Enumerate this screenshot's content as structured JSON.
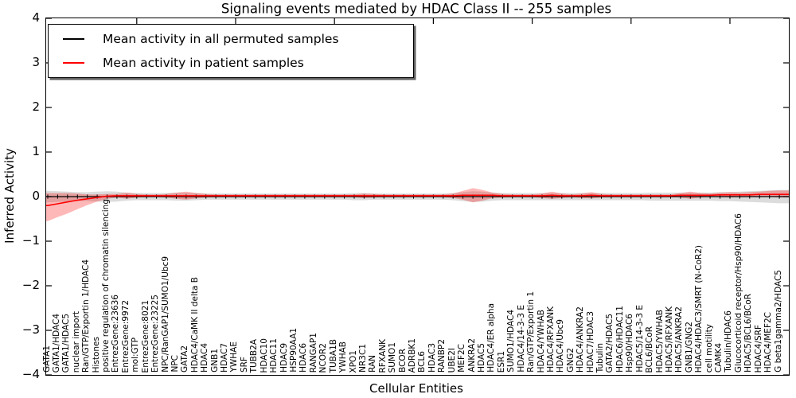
{
  "title": "Signaling events mediated by HDAC Class II -- 255 samples",
  "axes": {
    "x_label": "Cellular Entities",
    "y_label": "Inferred Activity"
  },
  "legend": {
    "items": [
      {
        "label": "Mean activity in all permuted samples",
        "color": "#000000"
      },
      {
        "label": "Mean activity in patient samples",
        "color": "#ff0000"
      }
    ],
    "position": "upper left"
  },
  "chart_data": {
    "type": "line",
    "title": "Signaling events mediated by HDAC Class II -- 255 samples",
    "xlabel": "Cellular Entities",
    "ylabel": "Inferred Activity",
    "ylim": [
      -4,
      4
    ],
    "yticks": [
      4,
      3,
      2,
      1,
      0,
      -1,
      -2,
      -3,
      -4
    ],
    "grid": false,
    "zero_line": "dotted",
    "categories": [
      "GATA1",
      "GATA1/HDAC4",
      "GATA1/HDAC5",
      "nuclear import",
      "Ran/GTP/Exportin 1/HDAC4",
      "Histones",
      "positive regulation of chromatin silencing",
      "EntrezGene:23636",
      "EntrezGene:9972",
      "mol:GTP",
      "EntrezGene:8021",
      "EntrezGene:23225",
      "NPC/RanGAP1/SUMO1/Ubc9",
      "NPC",
      "GATA2",
      "HDAC4/CaMK II delta B",
      "HDAC4",
      "GNB1",
      "HDAC7",
      "YWHAE",
      "SRF",
      "TUBB2A",
      "HDAC10",
      "HDAC11",
      "HDAC9",
      "HSP90AA1",
      "HDAC6",
      "RANGAP1",
      "NCOR2",
      "TUBA1B",
      "YWHAB",
      "XPO1",
      "NR3C1",
      "RAN",
      "RFXANK",
      "SUMO1",
      "BCOR",
      "ADRBK1",
      "BCL6",
      "HDAC3",
      "RANBP2",
      "UBE2I",
      "MEF2C",
      "ANKRA2",
      "HDAC5",
      "HDAC4/ER alpha",
      "ESR1",
      "SUMO1/HDAC4",
      "HDAC4/14-3-3 E",
      "Ran/GTP/Exportin 1",
      "HDAC4/YWHAB",
      "HDAC4/RFXANK",
      "HDAC4/Ubc9",
      "GNG2",
      "HDAC4/ANKRA2",
      "HDAC7/HDAC3",
      "Tubulin",
      "GATA2/HDAC5",
      "HDAC6/HDAC11",
      "Hsp90/HDAC6",
      "HDAC5/14-3-3 E",
      "BCL6/BCoR",
      "HDAC5/YWHAB",
      "HDAC5/RFXANK",
      "HDAC5/ANKRA2",
      "GNB1/GNG2",
      "HDAC4/HDAC3/SMRT (N-CoR2)",
      "cell motility",
      "CAMK4",
      "Tubulin/HDAC6",
      "Glucocorticoid receptor/Hsp90/HDAC6",
      "HDAC5/BCL6/BCoR",
      "HDAC4/SRF",
      "HDAC4/MEF2C",
      "G beta1gamma2/HDAC5"
    ],
    "series": [
      {
        "name": "Mean activity in all permuted samples",
        "color": "#000000",
        "values": 0
      },
      {
        "name": "Mean activity in patient samples",
        "color": "#ff0000",
        "values": [
          -0.2,
          -0.16,
          -0.12,
          -0.08,
          -0.05,
          -0.02,
          0.01,
          0.02,
          0.02,
          0.02,
          0.02,
          0.02,
          0.02,
          0.02,
          0.02,
          0.02,
          0.02,
          0.02,
          0.02,
          0.02,
          0.02,
          0.02,
          0.02,
          0.02,
          0.02,
          0.02,
          0.02,
          0.02,
          0.02,
          0.02,
          0.02,
          0.02,
          0.02,
          0.02,
          0.02,
          0.02,
          0.02,
          0.02,
          0.02,
          0.02,
          0.02,
          0.02,
          0.03,
          0.03,
          0.03,
          0.03,
          0.02,
          0.02,
          0.02,
          0.02,
          0.02,
          0.03,
          0.02,
          0.02,
          0.02,
          0.03,
          0.02,
          0.02,
          0.02,
          0.02,
          0.02,
          0.02,
          0.02,
          0.02,
          0.03,
          0.03,
          0.03,
          0.03,
          0.04,
          0.04,
          0.04,
          0.04,
          0.05,
          0.05,
          0.05
        ]
      }
    ],
    "bands": [
      {
        "name": "permuted samples range",
        "color": "rgba(130,130,130,0.28)",
        "upper": [
          0.13,
          0.12,
          0.11,
          0.1,
          0.1,
          0.11,
          0.12,
          0.11,
          0.09,
          0.08,
          0.08,
          0.08,
          0.08,
          0.09,
          0.09,
          0.08,
          0.07,
          0.07,
          0.07,
          0.07,
          0.07,
          0.07,
          0.07,
          0.07,
          0.07,
          0.07,
          0.07,
          0.07,
          0.07,
          0.07,
          0.07,
          0.08,
          0.08,
          0.07,
          0.07,
          0.07,
          0.07,
          0.07,
          0.07,
          0.07,
          0.07,
          0.08,
          0.1,
          0.12,
          0.11,
          0.09,
          0.08,
          0.08,
          0.08,
          0.08,
          0.08,
          0.08,
          0.08,
          0.08,
          0.08,
          0.08,
          0.08,
          0.08,
          0.08,
          0.08,
          0.08,
          0.09,
          0.09,
          0.09,
          0.09,
          0.09,
          0.09,
          0.09,
          0.1,
          0.1,
          0.11,
          0.12,
          0.13,
          0.14,
          0.15
        ],
        "lower": [
          -0.13,
          -0.12,
          -0.11,
          -0.1,
          -0.1,
          -0.11,
          -0.12,
          -0.11,
          -0.09,
          -0.08,
          -0.08,
          -0.08,
          -0.08,
          -0.09,
          -0.09,
          -0.08,
          -0.07,
          -0.07,
          -0.07,
          -0.07,
          -0.07,
          -0.07,
          -0.07,
          -0.07,
          -0.07,
          -0.07,
          -0.07,
          -0.07,
          -0.07,
          -0.07,
          -0.07,
          -0.08,
          -0.08,
          -0.07,
          -0.07,
          -0.07,
          -0.07,
          -0.07,
          -0.07,
          -0.07,
          -0.07,
          -0.08,
          -0.1,
          -0.12,
          -0.11,
          -0.09,
          -0.08,
          -0.08,
          -0.08,
          -0.08,
          -0.08,
          -0.08,
          -0.08,
          -0.08,
          -0.08,
          -0.08,
          -0.08,
          -0.08,
          -0.08,
          -0.08,
          -0.08,
          -0.09,
          -0.09,
          -0.09,
          -0.09,
          -0.09,
          -0.09,
          -0.09,
          -0.1,
          -0.1,
          -0.11,
          -0.12,
          -0.13,
          -0.14,
          -0.15
        ]
      },
      {
        "name": "patient samples range",
        "color": "rgba(255,0,0,0.28)",
        "upper": [
          0.08,
          0.08,
          0.08,
          0.07,
          0.05,
          0.05,
          0.06,
          0.06,
          0.09,
          0.06,
          0.05,
          0.05,
          0.06,
          0.09,
          0.11,
          0.08,
          0.06,
          0.05,
          0.05,
          0.05,
          0.05,
          0.05,
          0.05,
          0.05,
          0.05,
          0.05,
          0.05,
          0.05,
          0.05,
          0.05,
          0.05,
          0.05,
          0.07,
          0.06,
          0.05,
          0.05,
          0.05,
          0.05,
          0.05,
          0.05,
          0.05,
          0.07,
          0.13,
          0.19,
          0.15,
          0.09,
          0.06,
          0.05,
          0.05,
          0.05,
          0.07,
          0.11,
          0.07,
          0.05,
          0.07,
          0.1,
          0.06,
          0.05,
          0.05,
          0.05,
          0.05,
          0.05,
          0.05,
          0.05,
          0.08,
          0.11,
          0.08,
          0.07,
          0.09,
          0.1,
          0.09,
          0.1,
          0.11,
          0.13,
          0.14
        ],
        "lower": [
          -0.55,
          -0.46,
          -0.38,
          -0.28,
          -0.19,
          -0.11,
          -0.05,
          -0.02,
          -0.05,
          -0.02,
          -0.01,
          -0.01,
          -0.02,
          -0.05,
          -0.07,
          -0.04,
          -0.02,
          -0.01,
          -0.01,
          -0.01,
          -0.01,
          -0.01,
          -0.01,
          -0.01,
          -0.01,
          -0.01,
          -0.01,
          -0.01,
          -0.01,
          -0.01,
          -0.01,
          -0.01,
          -0.03,
          -0.02,
          -0.01,
          -0.01,
          -0.01,
          -0.01,
          -0.01,
          -0.01,
          -0.01,
          -0.03,
          -0.07,
          -0.13,
          -0.09,
          -0.03,
          -0.02,
          -0.01,
          -0.01,
          -0.01,
          -0.03,
          -0.05,
          -0.03,
          -0.01,
          -0.03,
          -0.04,
          -0.02,
          -0.01,
          -0.01,
          -0.01,
          -0.01,
          -0.01,
          -0.01,
          -0.01,
          -0.02,
          -0.05,
          -0.02,
          -0.01,
          -0.01,
          -0.02,
          -0.01,
          -0.01,
          -0.01,
          0.0,
          -0.02
        ]
      }
    ]
  }
}
